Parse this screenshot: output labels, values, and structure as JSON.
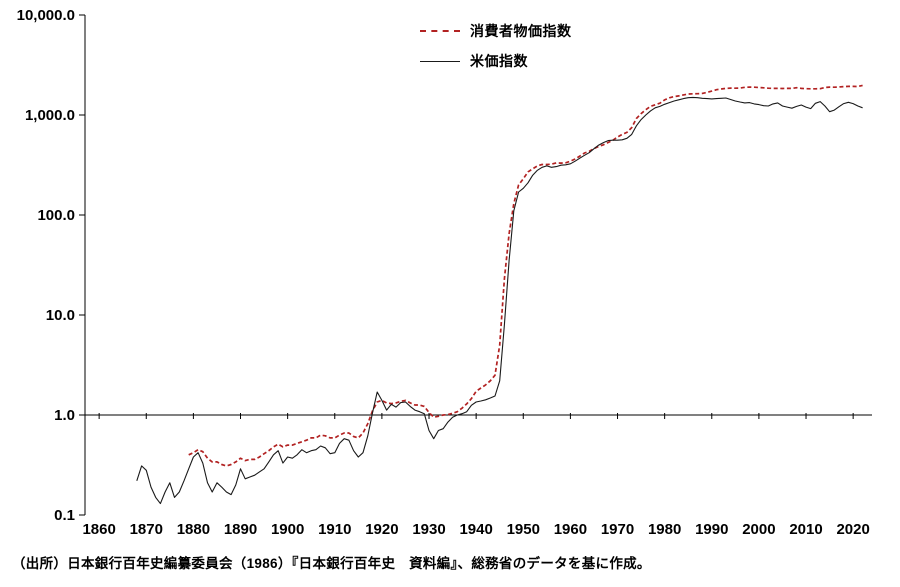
{
  "page": {
    "background": "#ffffff"
  },
  "source_note": "（出所）日本銀行百年史編纂委員会（1986）『日本銀行百年史　資料編』、総務省のデータを基に作成。",
  "chart_data": {
    "type": "line",
    "title": "",
    "xlabel": "",
    "ylabel": "",
    "y_scale": "log",
    "ylim": [
      0.1,
      10000
    ],
    "xlim": [
      1857,
      2024
    ],
    "x_axis_cross": 1.0,
    "grid": "off",
    "legend_position": "top-center",
    "y_ticks": [
      {
        "value": 10000,
        "label": "10,000.0"
      },
      {
        "value": 1000,
        "label": "1,000.0"
      },
      {
        "value": 100,
        "label": "100.0"
      },
      {
        "value": 10,
        "label": "10.0"
      },
      {
        "value": 1,
        "label": "1.0"
      },
      {
        "value": 0.1,
        "label": "0.1"
      }
    ],
    "x_ticks": [
      1860,
      1870,
      1880,
      1890,
      1900,
      1910,
      1920,
      1930,
      1940,
      1950,
      1960,
      1970,
      1980,
      1990,
      2000,
      2010,
      2020
    ],
    "series": [
      {
        "id": "cpi-line",
        "name": "消費者物価指数",
        "color": "#b22222",
        "style": "dashed",
        "start_year": 1879,
        "values": [
          0.4,
          0.42,
          0.45,
          0.43,
          0.37,
          0.34,
          0.34,
          0.32,
          0.31,
          0.32,
          0.34,
          0.37,
          0.35,
          0.36,
          0.36,
          0.38,
          0.41,
          0.44,
          0.48,
          0.51,
          0.48,
          0.5,
          0.5,
          0.52,
          0.54,
          0.56,
          0.59,
          0.59,
          0.63,
          0.62,
          0.59,
          0.59,
          0.63,
          0.66,
          0.66,
          0.61,
          0.59,
          0.66,
          0.82,
          1.1,
          1.35,
          1.4,
          1.32,
          1.3,
          1.32,
          1.37,
          1.4,
          1.32,
          1.26,
          1.26,
          1.22,
          1.06,
          0.95,
          0.97,
          1.0,
          1.01,
          1.04,
          1.08,
          1.17,
          1.29,
          1.46,
          1.72,
          1.86,
          2.0,
          2.2,
          2.5,
          5.0,
          23,
          65,
          130,
          200,
          230,
          270,
          290,
          310,
          320,
          320,
          322,
          332,
          330,
          333,
          345,
          363,
          388,
          417,
          433,
          462,
          485,
          504,
          531,
          559,
          602,
          640,
          670,
          749,
          923,
          1032,
          1129,
          1220,
          1266,
          1312,
          1415,
          1485,
          1526,
          1554,
          1589,
          1621,
          1631,
          1633,
          1644,
          1682,
          1734,
          1790,
          1821,
          1844,
          1857,
          1855,
          1857,
          1891,
          1903,
          1896,
          1883,
          1870,
          1852,
          1847,
          1847,
          1842,
          1847,
          1847,
          1873,
          1847,
          1834,
          1829,
          1828,
          1834,
          1884,
          1899,
          1896,
          1905,
          1924,
          1933,
          1933,
          1929,
          1977
        ]
      },
      {
        "id": "rice-line",
        "name": "米価指数",
        "color": "#1a1a1a",
        "style": "solid",
        "start_year": 1868,
        "values": [
          0.22,
          0.31,
          0.28,
          0.19,
          0.15,
          0.13,
          0.17,
          0.21,
          0.15,
          0.17,
          0.22,
          0.29,
          0.38,
          0.42,
          0.33,
          0.21,
          0.17,
          0.21,
          0.19,
          0.17,
          0.16,
          0.2,
          0.29,
          0.23,
          0.24,
          0.25,
          0.27,
          0.29,
          0.34,
          0.4,
          0.44,
          0.33,
          0.38,
          0.37,
          0.4,
          0.45,
          0.42,
          0.44,
          0.45,
          0.49,
          0.47,
          0.41,
          0.42,
          0.52,
          0.58,
          0.56,
          0.44,
          0.38,
          0.42,
          0.62,
          1.05,
          1.7,
          1.4,
          1.12,
          1.28,
          1.2,
          1.33,
          1.35,
          1.22,
          1.12,
          1.08,
          1.03,
          0.7,
          0.58,
          0.7,
          0.73,
          0.85,
          0.95,
          1.0,
          1.03,
          1.08,
          1.25,
          1.35,
          1.38,
          1.42,
          1.48,
          1.55,
          2.2,
          8.0,
          35,
          110,
          170,
          185,
          210,
          250,
          280,
          300,
          310,
          300,
          305,
          315,
          318,
          325,
          345,
          370,
          395,
          420,
          460,
          500,
          530,
          555,
          560,
          560,
          565,
          585,
          640,
          780,
          900,
          1000,
          1100,
          1180,
          1220,
          1280,
          1330,
          1380,
          1420,
          1460,
          1490,
          1500,
          1490,
          1470,
          1460,
          1450,
          1460,
          1470,
          1480,
          1430,
          1380,
          1350,
          1320,
          1330,
          1290,
          1270,
          1240,
          1230,
          1290,
          1320,
          1230,
          1200,
          1170,
          1220,
          1260,
          1200,
          1160,
          1310,
          1360,
          1230,
          1080,
          1120,
          1210,
          1300,
          1340,
          1300,
          1230,
          1180
        ]
      }
    ]
  }
}
